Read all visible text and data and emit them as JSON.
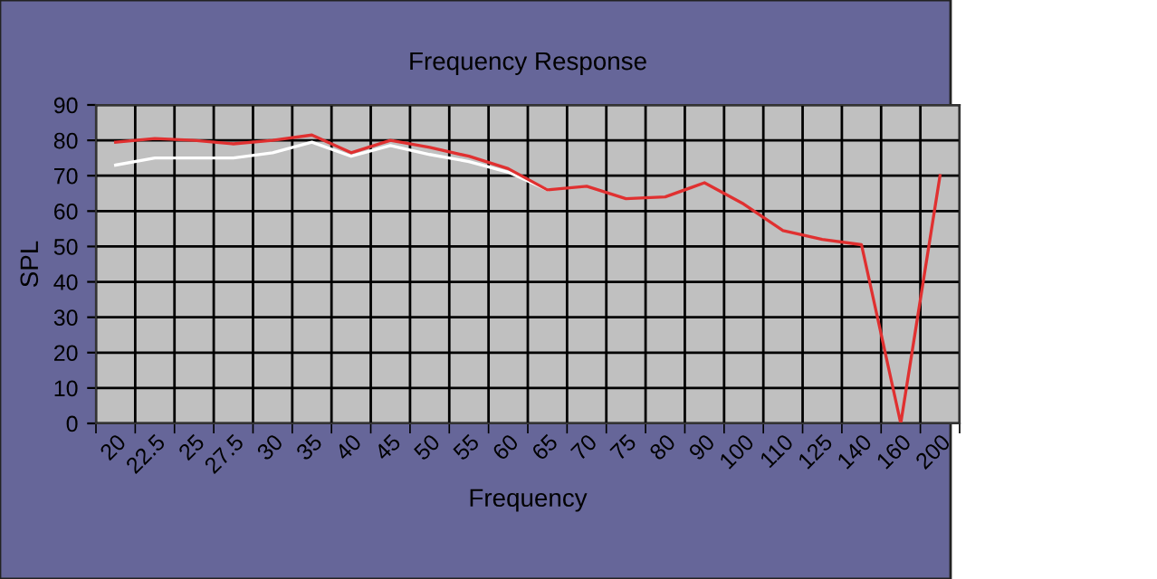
{
  "chart_data": {
    "type": "line",
    "title": "Frequency Response",
    "xlabel": "Frequency",
    "ylabel": "SPL",
    "categories": [
      "20",
      "22.5",
      "25",
      "27.5",
      "30",
      "35",
      "40",
      "45",
      "50",
      "55",
      "60",
      "65",
      "70",
      "75",
      "80",
      "90",
      "100",
      "110",
      "125",
      "140",
      "160",
      "200"
    ],
    "series": [
      {
        "color": "#ffffff",
        "values": [
          73,
          75,
          75,
          75,
          76.5,
          79.5,
          75.5,
          78.5,
          76,
          74,
          71,
          66,
          null,
          null,
          null,
          null,
          null,
          null,
          null,
          null,
          null,
          null
        ]
      },
      {
        "color": "#e03030",
        "values": [
          79.5,
          80.5,
          80,
          79,
          80,
          81.5,
          76.5,
          80,
          78,
          75.5,
          72,
          66,
          67,
          63.5,
          64,
          68,
          62,
          54.5,
          52,
          50.5,
          0,
          70
        ]
      }
    ],
    "ylim": [
      0,
      90
    ],
    "yticks": [
      0,
      10,
      20,
      30,
      40,
      50,
      60,
      70,
      80,
      90
    ],
    "grid": true,
    "legend": false,
    "marker": "none",
    "line_style": "solid"
  }
}
